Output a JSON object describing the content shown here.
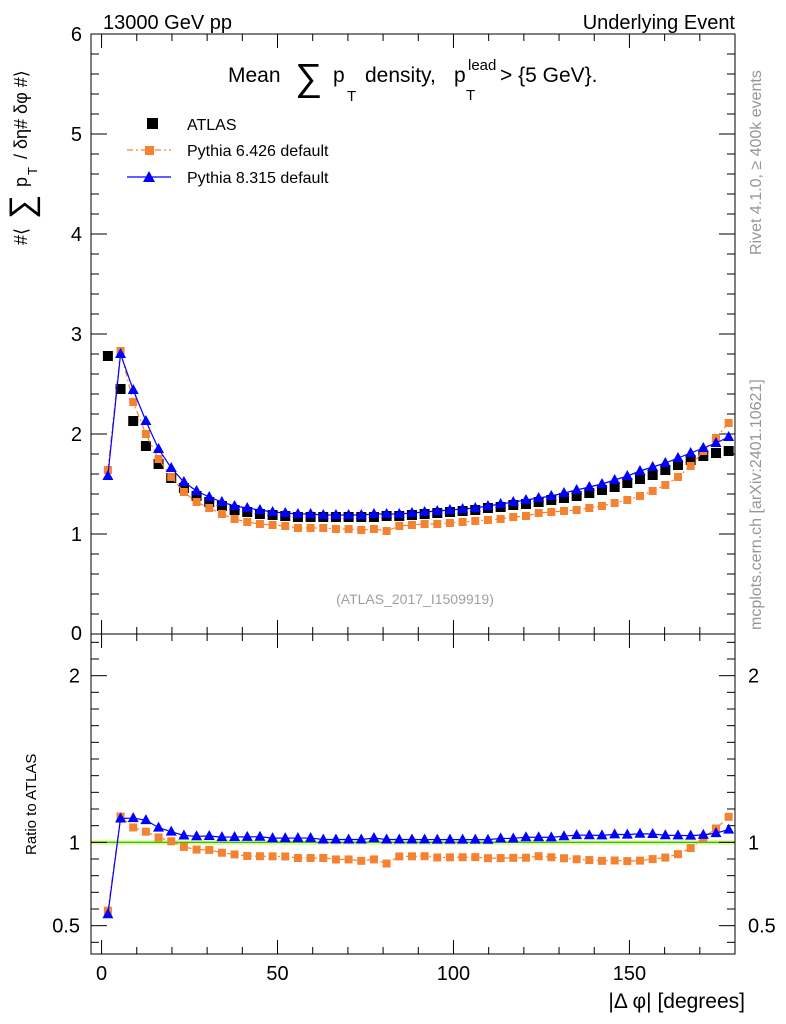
{
  "header": {
    "left": "13000 GeV pp",
    "right": "Underlying Event"
  },
  "side_text": {
    "rivet": "Rivet 4.1.0, ≥ 400k events",
    "source": "mcplots.cern.ch [arXiv:2401.10621]"
  },
  "chart_data": {
    "type": "line",
    "title": "Mean ∑ pT density, pT^lead > {5 GeV}",
    "title_parts": {
      "a": "Mean",
      "sum": "∑",
      "p": "p",
      "sub_t": "T",
      "b": "density,",
      "p2": "p",
      "sup_lead": "lead",
      "sub_t2": "T",
      "c": "> {5 GeV}."
    },
    "watermark": "(ATLAS_2017_I1509919)",
    "ylabel_parts": {
      "hash1": "#⟨",
      "sum": "∑",
      "p": "p",
      "sub": "T",
      "rest": "/ δη# δφ #⟩"
    },
    "xlabel": "|Δ φ| [degrees]",
    "ratio_ylabel": "Ratio to ATLAS",
    "xlim": [
      -3,
      180
    ],
    "ylim_main": [
      0,
      6
    ],
    "ylim_ratio": [
      0.33,
      2.25
    ],
    "x_ticks": [
      0,
      50,
      100,
      150
    ],
    "x_tick_labels": [
      "0",
      "50",
      "100",
      "150"
    ],
    "y_ticks_main": [
      0,
      1,
      2,
      3,
      4,
      5,
      6
    ],
    "y_tick_labels_main": [
      "0",
      "1",
      "2",
      "3",
      "4",
      "5",
      "6"
    ],
    "y_ticks_ratio": [
      0.5,
      1,
      2
    ],
    "y_tick_labels_ratio": [
      "0.5",
      "1",
      "2"
    ],
    "legend": {
      "position": "top-left",
      "entries": [
        "ATLAS",
        "Pythia 6.426 default",
        "Pythia 8.315 default"
      ]
    },
    "x": [
      1.8,
      5.4,
      9.0,
      12.6,
      16.2,
      19.8,
      23.4,
      27.0,
      30.6,
      34.2,
      37.8,
      41.4,
      45.0,
      48.6,
      52.2,
      55.8,
      59.4,
      63.0,
      66.6,
      70.2,
      73.8,
      77.4,
      81.0,
      84.6,
      88.2,
      91.8,
      95.4,
      99.0,
      102.6,
      106.2,
      109.8,
      113.4,
      117.0,
      120.6,
      124.2,
      127.8,
      131.4,
      135.0,
      138.6,
      142.2,
      145.8,
      149.4,
      153.0,
      156.6,
      160.2,
      163.8,
      167.4,
      171.0,
      174.6,
      178.2
    ],
    "series": [
      {
        "name": "ATLAS",
        "color": "#000000",
        "marker": "square",
        "values": [
          2.78,
          2.45,
          2.13,
          1.88,
          1.7,
          1.56,
          1.46,
          1.38,
          1.32,
          1.28,
          1.24,
          1.22,
          1.2,
          1.19,
          1.18,
          1.17,
          1.17,
          1.17,
          1.17,
          1.17,
          1.17,
          1.17,
          1.18,
          1.18,
          1.19,
          1.2,
          1.21,
          1.22,
          1.23,
          1.24,
          1.26,
          1.27,
          1.29,
          1.3,
          1.32,
          1.34,
          1.36,
          1.38,
          1.41,
          1.44,
          1.47,
          1.51,
          1.55,
          1.59,
          1.64,
          1.69,
          1.74,
          1.78,
          1.81,
          1.83
        ]
      },
      {
        "name": "Pythia 6.426 default",
        "color": "#f58230",
        "marker": "square",
        "values": [
          1.64,
          2.83,
          2.32,
          2.0,
          1.75,
          1.57,
          1.42,
          1.32,
          1.26,
          1.2,
          1.15,
          1.12,
          1.1,
          1.09,
          1.08,
          1.06,
          1.06,
          1.06,
          1.05,
          1.05,
          1.04,
          1.05,
          1.03,
          1.08,
          1.09,
          1.1,
          1.1,
          1.11,
          1.12,
          1.13,
          1.14,
          1.15,
          1.17,
          1.18,
          1.21,
          1.22,
          1.23,
          1.24,
          1.26,
          1.28,
          1.31,
          1.34,
          1.38,
          1.43,
          1.49,
          1.57,
          1.68,
          1.83,
          1.96,
          2.11
        ]
      },
      {
        "name": "Pythia 8.315 default",
        "color": "#0000ff",
        "marker": "triangle",
        "values": [
          1.58,
          2.8,
          2.44,
          2.13,
          1.85,
          1.66,
          1.52,
          1.43,
          1.37,
          1.32,
          1.28,
          1.26,
          1.24,
          1.22,
          1.21,
          1.2,
          1.2,
          1.19,
          1.19,
          1.19,
          1.19,
          1.2,
          1.2,
          1.2,
          1.21,
          1.22,
          1.23,
          1.24,
          1.25,
          1.26,
          1.28,
          1.3,
          1.32,
          1.34,
          1.36,
          1.38,
          1.41,
          1.44,
          1.47,
          1.5,
          1.54,
          1.58,
          1.63,
          1.67,
          1.71,
          1.76,
          1.81,
          1.86,
          1.91,
          1.97
        ]
      }
    ]
  }
}
